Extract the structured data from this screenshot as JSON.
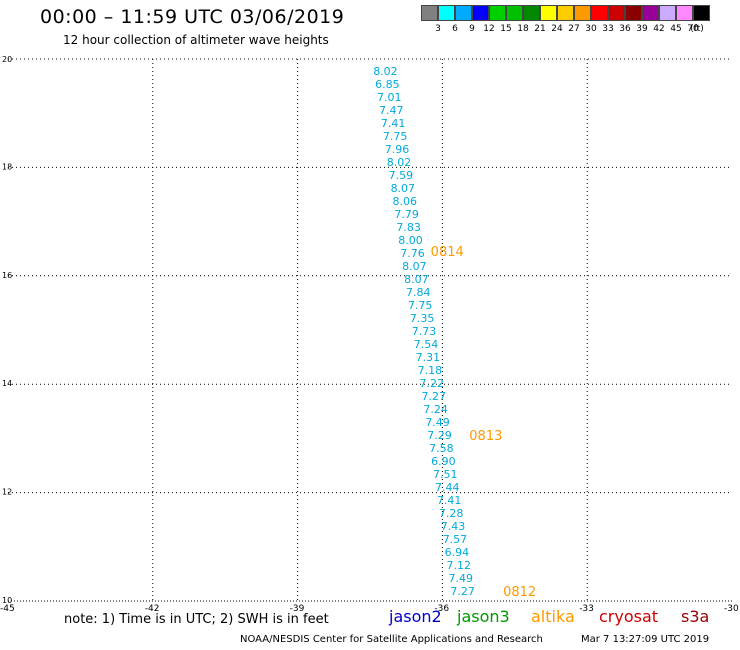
{
  "header": {
    "title": "00:00 – 11:59 UTC 03/06/2019",
    "subtitle": "12 hour collection of altimeter wave heights"
  },
  "color_scale": {
    "unit": "(ft)",
    "swatches": [
      {
        "label": "3",
        "color": "#808080"
      },
      {
        "label": "6",
        "color": "#00ffff"
      },
      {
        "label": "9",
        "color": "#00aaff"
      },
      {
        "label": "12",
        "color": "#0000ff"
      },
      {
        "label": "15",
        "color": "#00d000"
      },
      {
        "label": "18",
        "color": "#00c000"
      },
      {
        "label": "21",
        "color": "#008800"
      },
      {
        "label": "24",
        "color": "#ffff00"
      },
      {
        "label": "27",
        "color": "#ffcc00"
      },
      {
        "label": "30",
        "color": "#ff9900"
      },
      {
        "label": "33",
        "color": "#ff0000"
      },
      {
        "label": "36",
        "color": "#cc0000"
      },
      {
        "label": "39",
        "color": "#880000"
      },
      {
        "label": "42",
        "color": "#990099"
      },
      {
        "label": "45",
        "color": "#ccaaff"
      },
      {
        "label": "70",
        "color": "#ff88ff"
      },
      {
        "label": "",
        "color": "#000000"
      }
    ]
  },
  "map": {
    "lon_ticks": [
      "-45",
      "-42",
      "-39",
      "-36",
      "-33",
      "-30"
    ],
    "lat_ticks": [
      "10",
      "12",
      "14",
      "16",
      "18",
      "20"
    ],
    "lon_range": [
      -45,
      -30
    ],
    "lat_range": [
      10,
      20
    ],
    "track_color": "#00aadd",
    "time_color": "#ff9900",
    "observations": [
      {
        "lon": -37.18,
        "lat": 19.78,
        "swh": "8.02"
      },
      {
        "lon": -37.14,
        "lat": 19.54,
        "swh": "6.85"
      },
      {
        "lon": -37.1,
        "lat": 19.3,
        "swh": "7.01"
      },
      {
        "lon": -37.06,
        "lat": 19.06,
        "swh": "7.47"
      },
      {
        "lon": -37.02,
        "lat": 18.82,
        "swh": "7.41"
      },
      {
        "lon": -36.98,
        "lat": 18.58,
        "swh": "7.75"
      },
      {
        "lon": -36.94,
        "lat": 18.34,
        "swh": "7.96"
      },
      {
        "lon": -36.9,
        "lat": 18.1,
        "swh": "8.02"
      },
      {
        "lon": -36.86,
        "lat": 17.86,
        "swh": "7.59"
      },
      {
        "lon": -36.82,
        "lat": 17.62,
        "swh": "8.07"
      },
      {
        "lon": -36.78,
        "lat": 17.38,
        "swh": "8.06"
      },
      {
        "lon": -36.74,
        "lat": 17.14,
        "swh": "7.79"
      },
      {
        "lon": -36.7,
        "lat": 16.9,
        "swh": "7.83"
      },
      {
        "lon": -36.66,
        "lat": 16.66,
        "swh": "8.00"
      },
      {
        "lon": -36.62,
        "lat": 16.42,
        "swh": "7.76"
      },
      {
        "lon": -36.58,
        "lat": 16.18,
        "swh": "8.07"
      },
      {
        "lon": -36.54,
        "lat": 15.94,
        "swh": "8.07"
      },
      {
        "lon": -36.5,
        "lat": 15.7,
        "swh": "7.84"
      },
      {
        "lon": -36.46,
        "lat": 15.46,
        "swh": "7.75"
      },
      {
        "lon": -36.42,
        "lat": 15.22,
        "swh": "7.35"
      },
      {
        "lon": -36.38,
        "lat": 14.98,
        "swh": "7.73"
      },
      {
        "lon": -36.34,
        "lat": 14.74,
        "swh": "7.54"
      },
      {
        "lon": -36.3,
        "lat": 14.5,
        "swh": "7.31"
      },
      {
        "lon": -36.26,
        "lat": 14.26,
        "swh": "7.18"
      },
      {
        "lon": -36.22,
        "lat": 14.02,
        "swh": "7.22"
      },
      {
        "lon": -36.18,
        "lat": 13.78,
        "swh": "7.27"
      },
      {
        "lon": -36.14,
        "lat": 13.54,
        "swh": "7.24"
      },
      {
        "lon": -36.1,
        "lat": 13.3,
        "swh": "7.49"
      },
      {
        "lon": -36.06,
        "lat": 13.06,
        "swh": "7.29"
      },
      {
        "lon": -36.02,
        "lat": 12.82,
        "swh": "7.58"
      },
      {
        "lon": -35.98,
        "lat": 12.58,
        "swh": "6.90"
      },
      {
        "lon": -35.94,
        "lat": 12.34,
        "swh": "7.51"
      },
      {
        "lon": -35.9,
        "lat": 12.1,
        "swh": "7.44"
      },
      {
        "lon": -35.86,
        "lat": 11.86,
        "swh": "7.41"
      },
      {
        "lon": -35.82,
        "lat": 11.62,
        "swh": "7.28"
      },
      {
        "lon": -35.78,
        "lat": 11.38,
        "swh": "7.43"
      },
      {
        "lon": -35.74,
        "lat": 11.14,
        "swh": "7.57"
      },
      {
        "lon": -35.7,
        "lat": 10.9,
        "swh": "6.94"
      },
      {
        "lon": -35.66,
        "lat": 10.66,
        "swh": "7.12"
      },
      {
        "lon": -35.62,
        "lat": 10.42,
        "swh": "7.49"
      },
      {
        "lon": -35.58,
        "lat": 10.18,
        "swh": "7.27"
      }
    ],
    "time_labels": [
      {
        "lon": -35.9,
        "lat": 16.46,
        "text": "0814"
      },
      {
        "lon": -35.1,
        "lat": 13.06,
        "text": "0813"
      },
      {
        "lon": -34.4,
        "lat": 10.18,
        "text": "0812"
      }
    ]
  },
  "footer": {
    "note": "note: 1) Time is in UTC; 2) SWH is in feet",
    "satellites": [
      {
        "name": "jason2",
        "color": "#0000cc"
      },
      {
        "name": "jason3",
        "color": "#009900"
      },
      {
        "name": "altika",
        "color": "#ff9900"
      },
      {
        "name": "cryosat",
        "color": "#cc0000"
      },
      {
        "name": "s3a",
        "color": "#990000"
      }
    ],
    "credit": "NOAA/NESDIS Center for Satellite Applications and Research",
    "timestamp": "Mar  7 13:27:09 UTC 2019"
  }
}
